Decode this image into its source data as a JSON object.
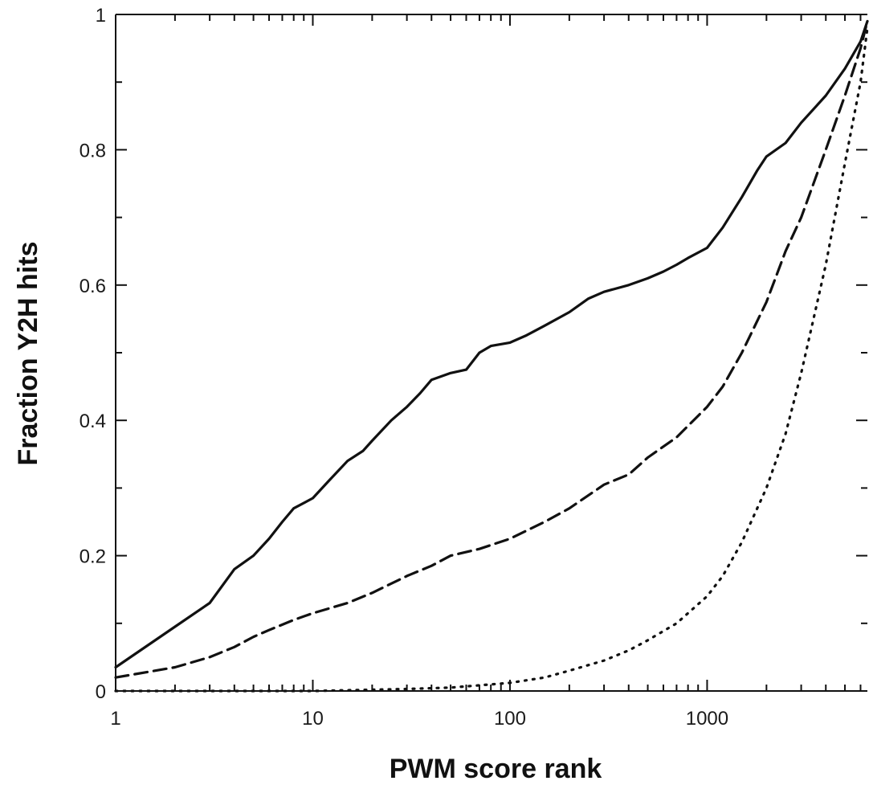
{
  "chart_data": {
    "type": "line",
    "xlabel": "PWM score rank",
    "ylabel": "Fraction Y2H hits",
    "x_scale": "log",
    "xlim": [
      1,
      6500
    ],
    "ylim": [
      0,
      1
    ],
    "x_ticks": [
      {
        "value": 1,
        "label": "1"
      },
      {
        "value": 10,
        "label": "10"
      },
      {
        "value": 100,
        "label": "100"
      },
      {
        "value": 1000,
        "label": "1000"
      }
    ],
    "y_ticks": [
      {
        "value": 0,
        "label": "0"
      },
      {
        "value": 0.2,
        "label": "0.2"
      },
      {
        "value": 0.4,
        "label": "0.4"
      },
      {
        "value": 0.6,
        "label": "0.6"
      },
      {
        "value": 0.8,
        "label": "0.8"
      },
      {
        "value": 1,
        "label": "1"
      }
    ],
    "grid": false,
    "legend": "none",
    "series": [
      {
        "line_style": "solid",
        "color": "#111111",
        "x": [
          1,
          2,
          3,
          4,
          5,
          6,
          7,
          8,
          10,
          12,
          15,
          18,
          20,
          25,
          30,
          35,
          40,
          50,
          60,
          70,
          80,
          100,
          120,
          150,
          200,
          250,
          300,
          400,
          500,
          600,
          700,
          800,
          1000,
          1200,
          1500,
          1800,
          2000,
          2500,
          3000,
          4000,
          5000,
          6000,
          6500
        ],
        "y": [
          0.035,
          0.095,
          0.13,
          0.18,
          0.2,
          0.225,
          0.25,
          0.27,
          0.285,
          0.31,
          0.34,
          0.355,
          0.37,
          0.4,
          0.42,
          0.44,
          0.46,
          0.47,
          0.475,
          0.5,
          0.51,
          0.515,
          0.525,
          0.54,
          0.56,
          0.58,
          0.59,
          0.6,
          0.61,
          0.62,
          0.63,
          0.64,
          0.655,
          0.685,
          0.73,
          0.77,
          0.79,
          0.81,
          0.84,
          0.88,
          0.92,
          0.96,
          0.99
        ]
      },
      {
        "line_style": "dashed",
        "color": "#111111",
        "x": [
          1,
          2,
          3,
          4,
          5,
          6,
          8,
          10,
          15,
          20,
          30,
          40,
          50,
          70,
          100,
          150,
          200,
          300,
          400,
          500,
          700,
          1000,
          1200,
          1500,
          2000,
          2500,
          3000,
          4000,
          5000,
          6000,
          6500
        ],
        "y": [
          0.02,
          0.035,
          0.05,
          0.065,
          0.08,
          0.09,
          0.105,
          0.115,
          0.13,
          0.145,
          0.17,
          0.185,
          0.2,
          0.21,
          0.225,
          0.25,
          0.27,
          0.305,
          0.32,
          0.345,
          0.375,
          0.42,
          0.45,
          0.5,
          0.575,
          0.65,
          0.7,
          0.8,
          0.88,
          0.95,
          0.99
        ]
      },
      {
        "line_style": "dotted",
        "color": "#111111",
        "x": [
          1,
          10,
          30,
          50,
          100,
          150,
          200,
          300,
          400,
          500,
          700,
          1000,
          1200,
          1500,
          2000,
          2500,
          3000,
          4000,
          5000,
          6000,
          6500
        ],
        "y": [
          0.0,
          0.0,
          0.003,
          0.005,
          0.012,
          0.02,
          0.03,
          0.045,
          0.06,
          0.075,
          0.1,
          0.14,
          0.17,
          0.22,
          0.3,
          0.38,
          0.47,
          0.63,
          0.78,
          0.9,
          0.98
        ]
      }
    ]
  }
}
